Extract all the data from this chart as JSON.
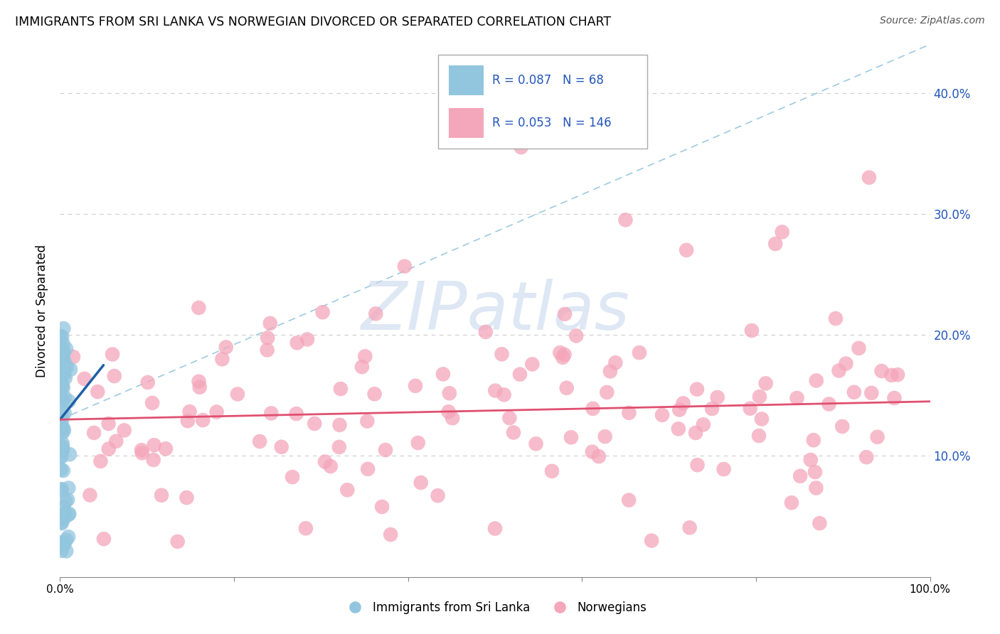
{
  "title": "IMMIGRANTS FROM SRI LANKA VS NORWEGIAN DIVORCED OR SEPARATED CORRELATION CHART",
  "source": "Source: ZipAtlas.com",
  "ylabel": "Divorced or Separated",
  "legend_label_blue": "Immigrants from Sri Lanka",
  "legend_label_pink": "Norwegians",
  "blue_color": "#92c5de",
  "pink_color": "#f4a6ba",
  "blue_line_color": "#1f5fa6",
  "pink_line_color": "#e05070",
  "dashed_line_color": "#92c5de",
  "legend_text_color": "#2255bb",
  "grid_color": "#cccccc",
  "watermark_color": "#c8d8ee",
  "xlim": [
    0.0,
    1.0
  ],
  "ylim": [
    0.0,
    0.44
  ],
  "ytick_vals": [
    0.1,
    0.2,
    0.3,
    0.4
  ],
  "ytick_labels": [
    "10.0%",
    "20.0%",
    "30.0%",
    "40.0%"
  ],
  "blue_r": "0.087",
  "blue_n": "68",
  "pink_r": "0.053",
  "pink_n": "146"
}
